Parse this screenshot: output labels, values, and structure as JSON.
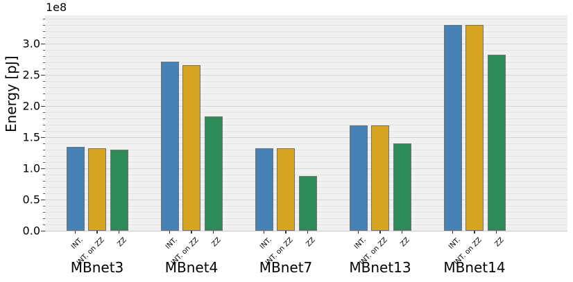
{
  "chart_data": {
    "type": "bar",
    "title": "",
    "ylabel": "Energy [pJ]",
    "y_offset_label": "1e8",
    "unit_note": "values are in units of 1e8 pJ",
    "categories": [
      "MBnet3",
      "MBnet4",
      "MBnet7",
      "MBnet13",
      "MBnet14"
    ],
    "bar_labels": [
      "INT.",
      "INT. on ZZ",
      "ZZ"
    ],
    "series": [
      {
        "name": "INT.",
        "color": "#4682b4",
        "values": [
          1.34,
          2.71,
          1.32,
          1.69,
          3.3
        ]
      },
      {
        "name": "INT. on ZZ",
        "color": "#d9a521",
        "values": [
          1.32,
          2.66,
          1.32,
          1.69,
          3.3
        ]
      },
      {
        "name": "ZZ",
        "color": "#2e8b57",
        "values": [
          1.3,
          1.83,
          0.88,
          1.4,
          2.82
        ]
      }
    ],
    "ylim": [
      0,
      3.46
    ],
    "yticks": [
      0.0,
      0.5,
      1.0,
      1.5,
      2.0,
      2.5,
      3.0
    ],
    "grid": "horizontal; minor every 0.1, major every 0.5",
    "legend": "none",
    "colors": {
      "plot_background": "#f0f0f0",
      "minor_grid": "#e4e4e4",
      "major_grid": "#d4d4d4",
      "bar_edge": "#707070"
    }
  }
}
